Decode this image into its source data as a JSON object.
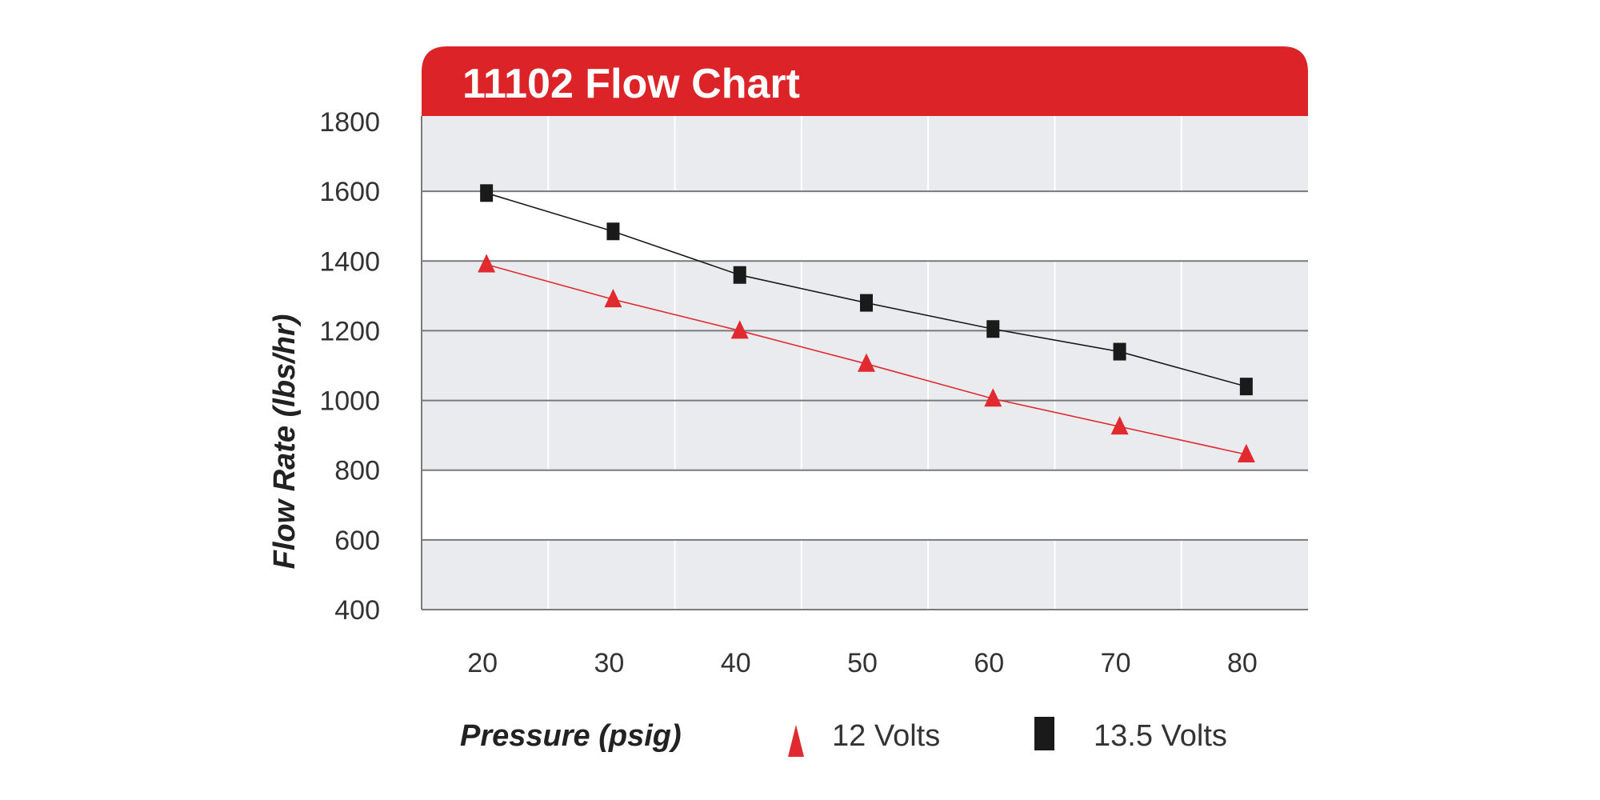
{
  "chart_data": {
    "type": "line",
    "title": "11102 Flow Chart",
    "xlabel": "Pressure (psig)",
    "ylabel": "Flow Rate (lbs/hr)",
    "x_ticks": [
      "20",
      "30",
      "40",
      "50",
      "60",
      "70",
      "80"
    ],
    "y_ticks": [
      "1800",
      "1600",
      "1400",
      "1200",
      "1000",
      "800",
      "600",
      "400"
    ],
    "ylim": [
      400,
      1800
    ],
    "xlim": [
      15,
      85
    ],
    "grid": true,
    "legend_placement": "bottom",
    "series": [
      {
        "name": "12 Volts",
        "marker": "triangle",
        "color": "#e02a2f",
        "x": [
          20,
          30,
          40,
          50,
          60,
          70,
          80
        ],
        "values": [
          1390,
          1290,
          1200,
          1105,
          1005,
          925,
          845
        ]
      },
      {
        "name": "13.5 Volts",
        "marker": "square",
        "color": "#1a1a1a",
        "x": [
          20,
          30,
          40,
          50,
          60,
          70,
          80
        ],
        "values": [
          1595,
          1485,
          1360,
          1280,
          1205,
          1140,
          1040
        ]
      }
    ]
  },
  "colors": {
    "header": "#dc2328",
    "band_light": "#eaebee",
    "band_white": "#ffffff",
    "grid_line": "#7a7a7a",
    "vertical_grid": "#ffffff"
  }
}
